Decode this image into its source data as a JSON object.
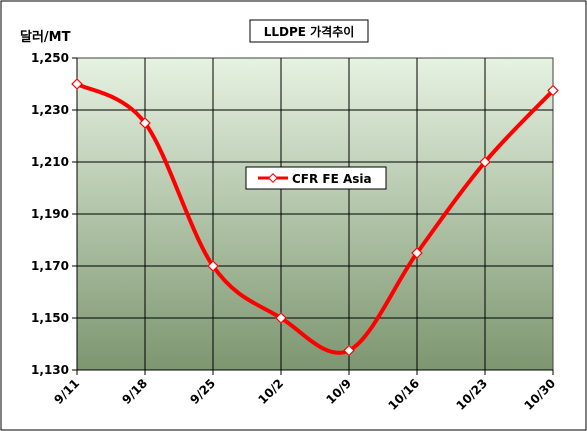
{
  "chart_data": {
    "type": "line",
    "title": "LLDPE 가격추이",
    "ylabel": "달러/MT",
    "xlabel": "",
    "categories": [
      "9/11",
      "9/18",
      "9/25",
      "10/2",
      "10/9",
      "10/16",
      "10/23",
      "10/30"
    ],
    "series": [
      {
        "name": "CFR FE Asia",
        "values": [
          1240,
          1225,
          1170,
          1150,
          1137.5,
          1175,
          1210,
          1237.5
        ],
        "color": "#ff0000"
      }
    ],
    "ylim": [
      1130,
      1250
    ],
    "yticks": [
      1130,
      1150,
      1170,
      1190,
      1210,
      1230,
      1250
    ],
    "ytick_labels": [
      "1,130",
      "1,150",
      "1,170",
      "1,190",
      "1,210",
      "1,230",
      "1,250"
    ],
    "grid": true,
    "legend_position": "center-right",
    "plot_background": [
      "#e6f2e2",
      "#7d9670"
    ],
    "smooth": true
  }
}
